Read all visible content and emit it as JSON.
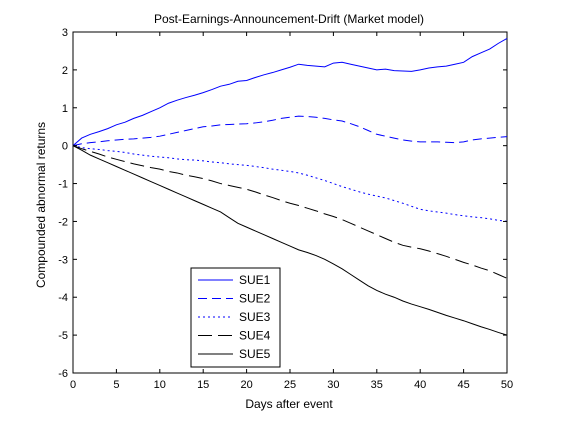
{
  "chart_data": {
    "type": "line",
    "title": "Post-Earnings-Announcement-Drift (Market model)",
    "xlabel": "Days after event",
    "ylabel": "Compounded abnormal returns",
    "xlim": [
      0,
      50
    ],
    "ylim": [
      -6,
      3
    ],
    "xticks": [
      0,
      5,
      10,
      15,
      20,
      25,
      30,
      35,
      40,
      45,
      50
    ],
    "yticks": [
      3,
      2,
      1,
      0,
      -1,
      -2,
      -3,
      -4,
      -5,
      -6
    ],
    "grid": false,
    "legend_position": "bottom-left",
    "x": [
      0,
      1,
      2,
      3,
      4,
      5,
      6,
      7,
      8,
      9,
      10,
      11,
      12,
      13,
      14,
      15,
      16,
      17,
      18,
      19,
      20,
      21,
      22,
      23,
      24,
      25,
      26,
      27,
      28,
      29,
      30,
      31,
      32,
      33,
      34,
      35,
      36,
      37,
      38,
      39,
      40,
      41,
      42,
      43,
      44,
      45,
      46,
      47,
      48,
      49,
      50
    ],
    "series": [
      {
        "name": "SUE1",
        "color": "#0000ff",
        "dash": "solid",
        "values": [
          0.0,
          0.2,
          0.3,
          0.37,
          0.45,
          0.55,
          0.62,
          0.72,
          0.8,
          0.9,
          1.0,
          1.12,
          1.2,
          1.27,
          1.33,
          1.4,
          1.48,
          1.57,
          1.62,
          1.7,
          1.72,
          1.8,
          1.87,
          1.93,
          2.0,
          2.07,
          2.15,
          2.12,
          2.1,
          2.08,
          2.18,
          2.2,
          2.15,
          2.1,
          2.05,
          2.0,
          2.02,
          1.98,
          1.97,
          1.96,
          2.0,
          2.05,
          2.08,
          2.1,
          2.15,
          2.2,
          2.35,
          2.45,
          2.55,
          2.7,
          2.83
        ]
      },
      {
        "name": "SUE2",
        "color": "#0000ff",
        "dash": "dash",
        "values": [
          0.0,
          0.05,
          0.08,
          0.1,
          0.13,
          0.15,
          0.17,
          0.18,
          0.2,
          0.22,
          0.25,
          0.3,
          0.35,
          0.4,
          0.45,
          0.5,
          0.52,
          0.55,
          0.56,
          0.57,
          0.58,
          0.6,
          0.63,
          0.67,
          0.72,
          0.75,
          0.78,
          0.77,
          0.75,
          0.72,
          0.68,
          0.65,
          0.58,
          0.5,
          0.4,
          0.3,
          0.25,
          0.2,
          0.15,
          0.12,
          0.1,
          0.1,
          0.1,
          0.09,
          0.08,
          0.1,
          0.15,
          0.18,
          0.2,
          0.22,
          0.24
        ]
      },
      {
        "name": "SUE3",
        "color": "#0000ff",
        "dash": "dot",
        "values": [
          0.0,
          -0.05,
          -0.08,
          -0.1,
          -0.13,
          -0.15,
          -0.18,
          -0.22,
          -0.25,
          -0.28,
          -0.3,
          -0.32,
          -0.35,
          -0.37,
          -0.38,
          -0.4,
          -0.43,
          -0.45,
          -0.48,
          -0.5,
          -0.52,
          -0.55,
          -0.58,
          -0.62,
          -0.65,
          -0.68,
          -0.72,
          -0.78,
          -0.85,
          -0.92,
          -1.0,
          -1.08,
          -1.15,
          -1.22,
          -1.28,
          -1.33,
          -1.38,
          -1.45,
          -1.52,
          -1.6,
          -1.68,
          -1.72,
          -1.75,
          -1.78,
          -1.82,
          -1.85,
          -1.88,
          -1.9,
          -1.93,
          -1.97,
          -2.0
        ]
      },
      {
        "name": "SUE4",
        "color": "#000000",
        "dash": "longdash",
        "values": [
          0.0,
          -0.08,
          -0.15,
          -0.22,
          -0.3,
          -0.36,
          -0.42,
          -0.48,
          -0.53,
          -0.58,
          -0.62,
          -0.68,
          -0.72,
          -0.78,
          -0.82,
          -0.87,
          -0.93,
          -1.0,
          -1.05,
          -1.1,
          -1.15,
          -1.22,
          -1.3,
          -1.37,
          -1.45,
          -1.52,
          -1.58,
          -1.65,
          -1.72,
          -1.8,
          -1.87,
          -1.95,
          -2.05,
          -2.15,
          -2.25,
          -2.35,
          -2.45,
          -2.55,
          -2.63,
          -2.68,
          -2.72,
          -2.78,
          -2.85,
          -2.92,
          -3.0,
          -3.08,
          -3.15,
          -3.23,
          -3.3,
          -3.4,
          -3.5
        ]
      },
      {
        "name": "SUE5",
        "color": "#000000",
        "dash": "solid",
        "values": [
          0.0,
          -0.12,
          -0.25,
          -0.35,
          -0.45,
          -0.55,
          -0.65,
          -0.75,
          -0.85,
          -0.95,
          -1.05,
          -1.15,
          -1.25,
          -1.35,
          -1.45,
          -1.55,
          -1.65,
          -1.75,
          -1.9,
          -2.05,
          -2.15,
          -2.25,
          -2.35,
          -2.45,
          -2.55,
          -2.65,
          -2.75,
          -2.82,
          -2.9,
          -3.0,
          -3.12,
          -3.25,
          -3.4,
          -3.55,
          -3.7,
          -3.82,
          -3.92,
          -4.0,
          -4.1,
          -4.18,
          -4.25,
          -4.32,
          -4.4,
          -4.48,
          -4.55,
          -4.62,
          -4.7,
          -4.78,
          -4.85,
          -4.93,
          -5.0
        ]
      }
    ]
  }
}
